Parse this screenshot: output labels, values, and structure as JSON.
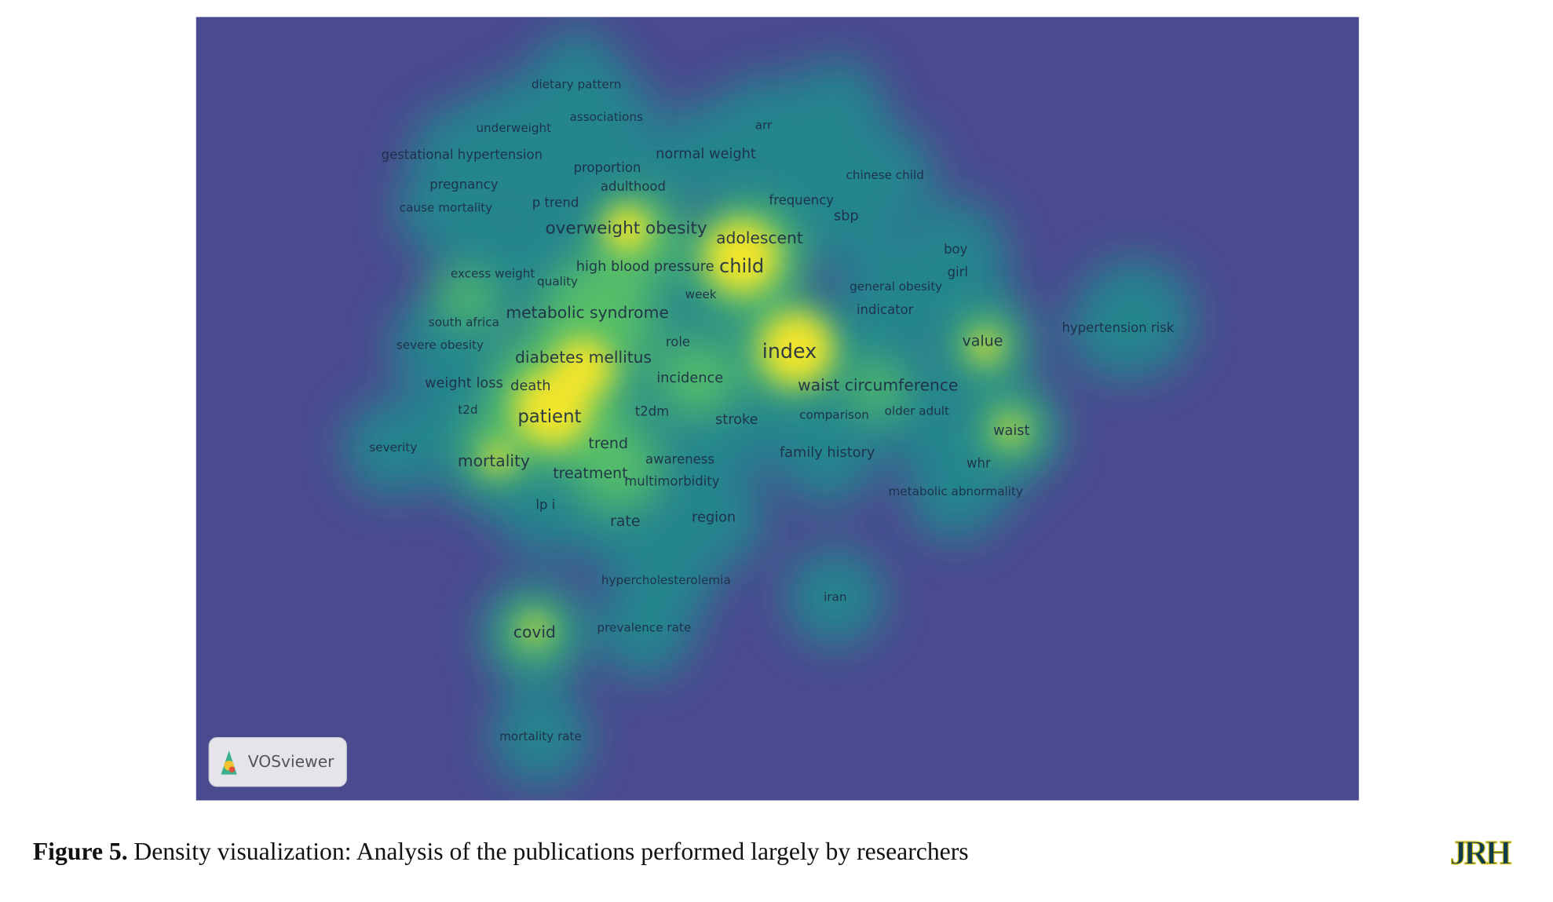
{
  "figure": {
    "terms": [
      "dietary pattern",
      "associations",
      "underweight",
      "arr",
      "gestational hypertension",
      "proportion",
      "normal weight",
      "chinese child",
      "pregnancy",
      "adulthood",
      "p trend",
      "frequency",
      "cause mortality",
      "sbp",
      "overweight obesity",
      "adolescent",
      "boy",
      "excess weight",
      "quality",
      "high blood pressure",
      "child",
      "girl",
      "general obesity",
      "week",
      "south africa",
      "metabolic syndrome",
      "indicator",
      "hypertension risk",
      "severe obesity",
      "role",
      "value",
      "index",
      "diabetes mellitus",
      "incidence",
      "waist circumference",
      "weight loss",
      "death",
      "t2d",
      "patient",
      "t2dm",
      "stroke",
      "comparison",
      "older adult",
      "waist",
      "severity",
      "trend",
      "awareness",
      "family history",
      "mortality",
      "whr",
      "treatment",
      "multimorbidity",
      "metabolic abnormality",
      "lp i",
      "rate",
      "region",
      "hypercholesterolemia",
      "iran",
      "covid",
      "prevalence rate",
      "mortality rate"
    ],
    "badge": "VOSviewer",
    "caption": {
      "label": "Figure 5.",
      "text": "Density visualization: Analysis of the publications performed largely by researchers"
    },
    "logo": "JRH"
  }
}
